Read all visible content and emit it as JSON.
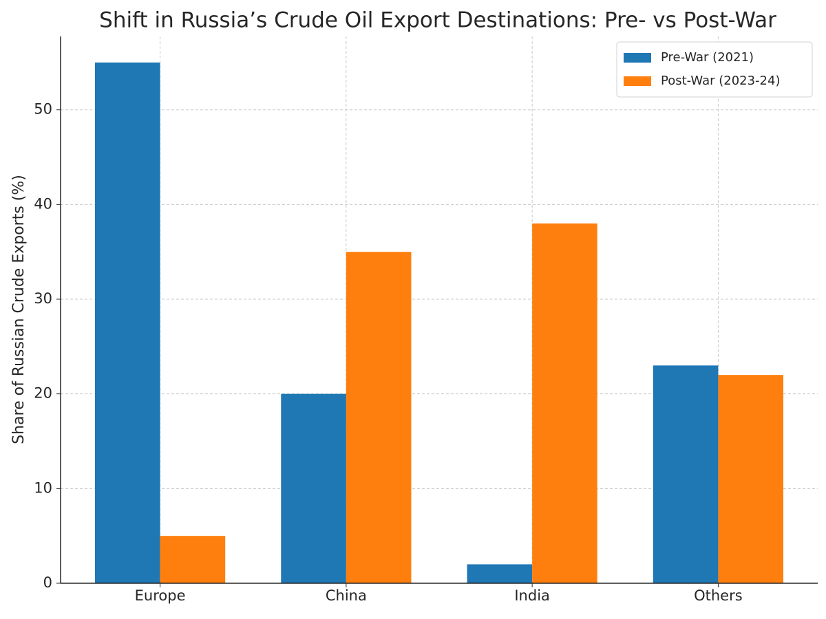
{
  "chart_data": {
    "type": "bar",
    "title": "Shift in Russia’s Crude Oil Export Destinations: Pre- vs Post-War",
    "y_label": "Share of Russian Crude Exports (%)",
    "categories": [
      "Europe",
      "China",
      "India",
      "Others"
    ],
    "series": [
      {
        "name": "Pre-War (2021)",
        "color": "#1f77b4",
        "values": [
          55,
          20,
          2,
          23
        ]
      },
      {
        "name": "Post-War (2023-24)",
        "color": "#ff7f0e",
        "values": [
          5,
          35,
          38,
          22
        ]
      }
    ],
    "ylim": [
      0,
      57.75
    ],
    "yticks": [
      0,
      10,
      20,
      30,
      40,
      50
    ],
    "grid": true,
    "legend": "upper right"
  }
}
